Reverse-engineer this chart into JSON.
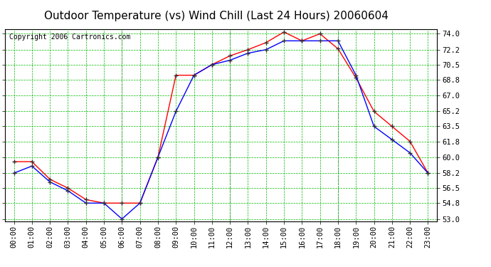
{
  "title": "Outdoor Temperature (vs) Wind Chill (Last 24 Hours) 20060604",
  "copyright": "Copyright 2006 Cartronics.com",
  "x_labels": [
    "00:00",
    "01:00",
    "02:00",
    "03:00",
    "04:00",
    "05:00",
    "06:00",
    "07:00",
    "08:00",
    "09:00",
    "10:00",
    "11:00",
    "12:00",
    "13:00",
    "14:00",
    "15:00",
    "16:00",
    "17:00",
    "18:00",
    "19:00",
    "20:00",
    "21:00",
    "22:00",
    "23:00"
  ],
  "temp_red": [
    59.5,
    59.5,
    57.5,
    56.5,
    55.2,
    54.8,
    54.8,
    54.8,
    60.0,
    69.3,
    69.3,
    70.5,
    71.5,
    72.2,
    73.0,
    74.2,
    73.2,
    74.0,
    72.3,
    69.0,
    65.2,
    63.5,
    61.8,
    58.2
  ],
  "temp_blue": [
    58.2,
    59.0,
    57.2,
    56.2,
    54.8,
    54.8,
    53.0,
    54.8,
    60.0,
    65.2,
    69.3,
    70.5,
    71.0,
    71.8,
    72.2,
    73.2,
    73.2,
    73.2,
    73.2,
    69.3,
    63.5,
    62.0,
    60.5,
    58.2
  ],
  "ymin": 53.0,
  "ymax": 74.0,
  "yticks": [
    53.0,
    54.8,
    56.5,
    58.2,
    60.0,
    61.8,
    63.5,
    65.2,
    67.0,
    68.8,
    70.5,
    72.2,
    74.0
  ],
  "red_color": "#ff0000",
  "blue_color": "#0000ff",
  "green_grid_color": "#00bb00",
  "bg_color": "#ffffff",
  "plot_bg_color": "#ffffff",
  "title_fontsize": 11,
  "copyright_fontsize": 7,
  "tick_fontsize": 7.5
}
